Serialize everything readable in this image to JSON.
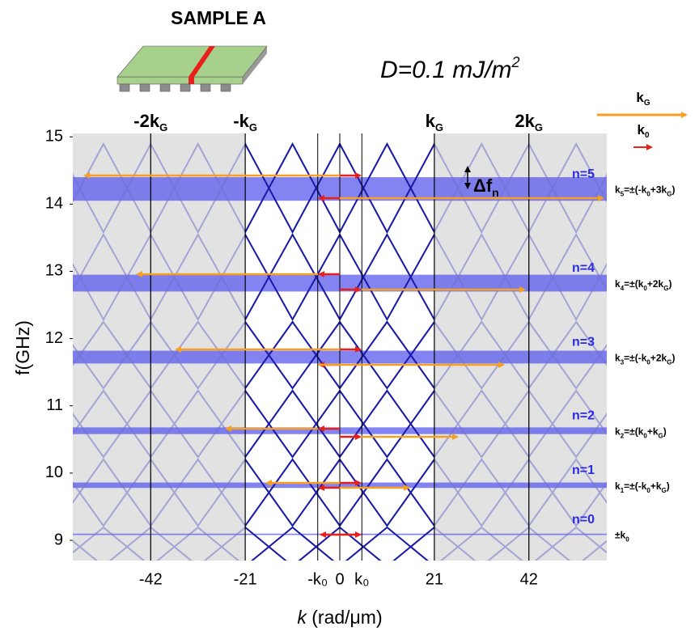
{
  "chart_data": {
    "type": "bands",
    "title": "SAMPLE A",
    "annotation": [
      "D=0.1 mJ/m",
      "2"
    ],
    "xlabel": [
      "k",
      " (rad/μm)"
    ],
    "ylabel": "f(GHz)",
    "xlim": [
      -59.3,
      59.3
    ],
    "ylim": [
      8.7,
      15.05
    ],
    "xticks": [
      -42,
      -21,
      {
        "value": -4.9,
        "label": "-k₀"
      },
      0,
      {
        "value": 4.9,
        "label": "k₀"
      },
      21,
      42
    ],
    "yticks": [
      9,
      10,
      11,
      12,
      13,
      14,
      15
    ],
    "top_ticks": [
      {
        "value": -42,
        "label": [
          "-2k",
          "G"
        ]
      },
      {
        "value": -21,
        "label": [
          "-k",
          "G"
        ]
      },
      {
        "value": 21,
        "label": [
          "k",
          "G"
        ]
      },
      {
        "value": 42,
        "label": [
          "2k",
          "G"
        ]
      }
    ],
    "band_color": "#5a5aee",
    "bands": [
      {
        "name": "n=0",
        "low": 9.08,
        "high": 9.1,
        "wavevector": [
          "±k",
          "0"
        ]
      },
      {
        "name": "n=1",
        "low": 9.78,
        "high": 9.86,
        "wavevector": [
          "k",
          "1",
          "=±(-k",
          "0",
          "+k",
          "G",
          ")"
        ]
      },
      {
        "name": "n=2",
        "low": 10.58,
        "high": 10.68,
        "wavevector": [
          "k",
          "2",
          "=±(k",
          "0",
          "+k",
          "G",
          ")"
        ]
      },
      {
        "name": "n=3",
        "low": 11.63,
        "high": 11.82,
        "wavevector": [
          "k",
          "3",
          "=±(-k",
          "0",
          "+2k",
          "G",
          ")"
        ]
      },
      {
        "name": "n=4",
        "low": 12.7,
        "high": 12.95,
        "wavevector": [
          "k",
          "4",
          "=±(k",
          "0",
          "+2k",
          "G",
          ")"
        ]
      },
      {
        "name": "n=5",
        "low": 14.05,
        "high": 14.4,
        "wavevector": [
          "k",
          "5",
          "=±(-k",
          "0",
          "+3k",
          "G",
          ")"
        ]
      }
    ],
    "gap_label": [
      "Δf",
      "n"
    ],
    "legend": [
      {
        "name": [
          "k",
          "G"
        ],
        "color": "#f5a023"
      },
      {
        "name": [
          "k",
          "0"
        ],
        "color": "#e8201a"
      }
    ]
  }
}
